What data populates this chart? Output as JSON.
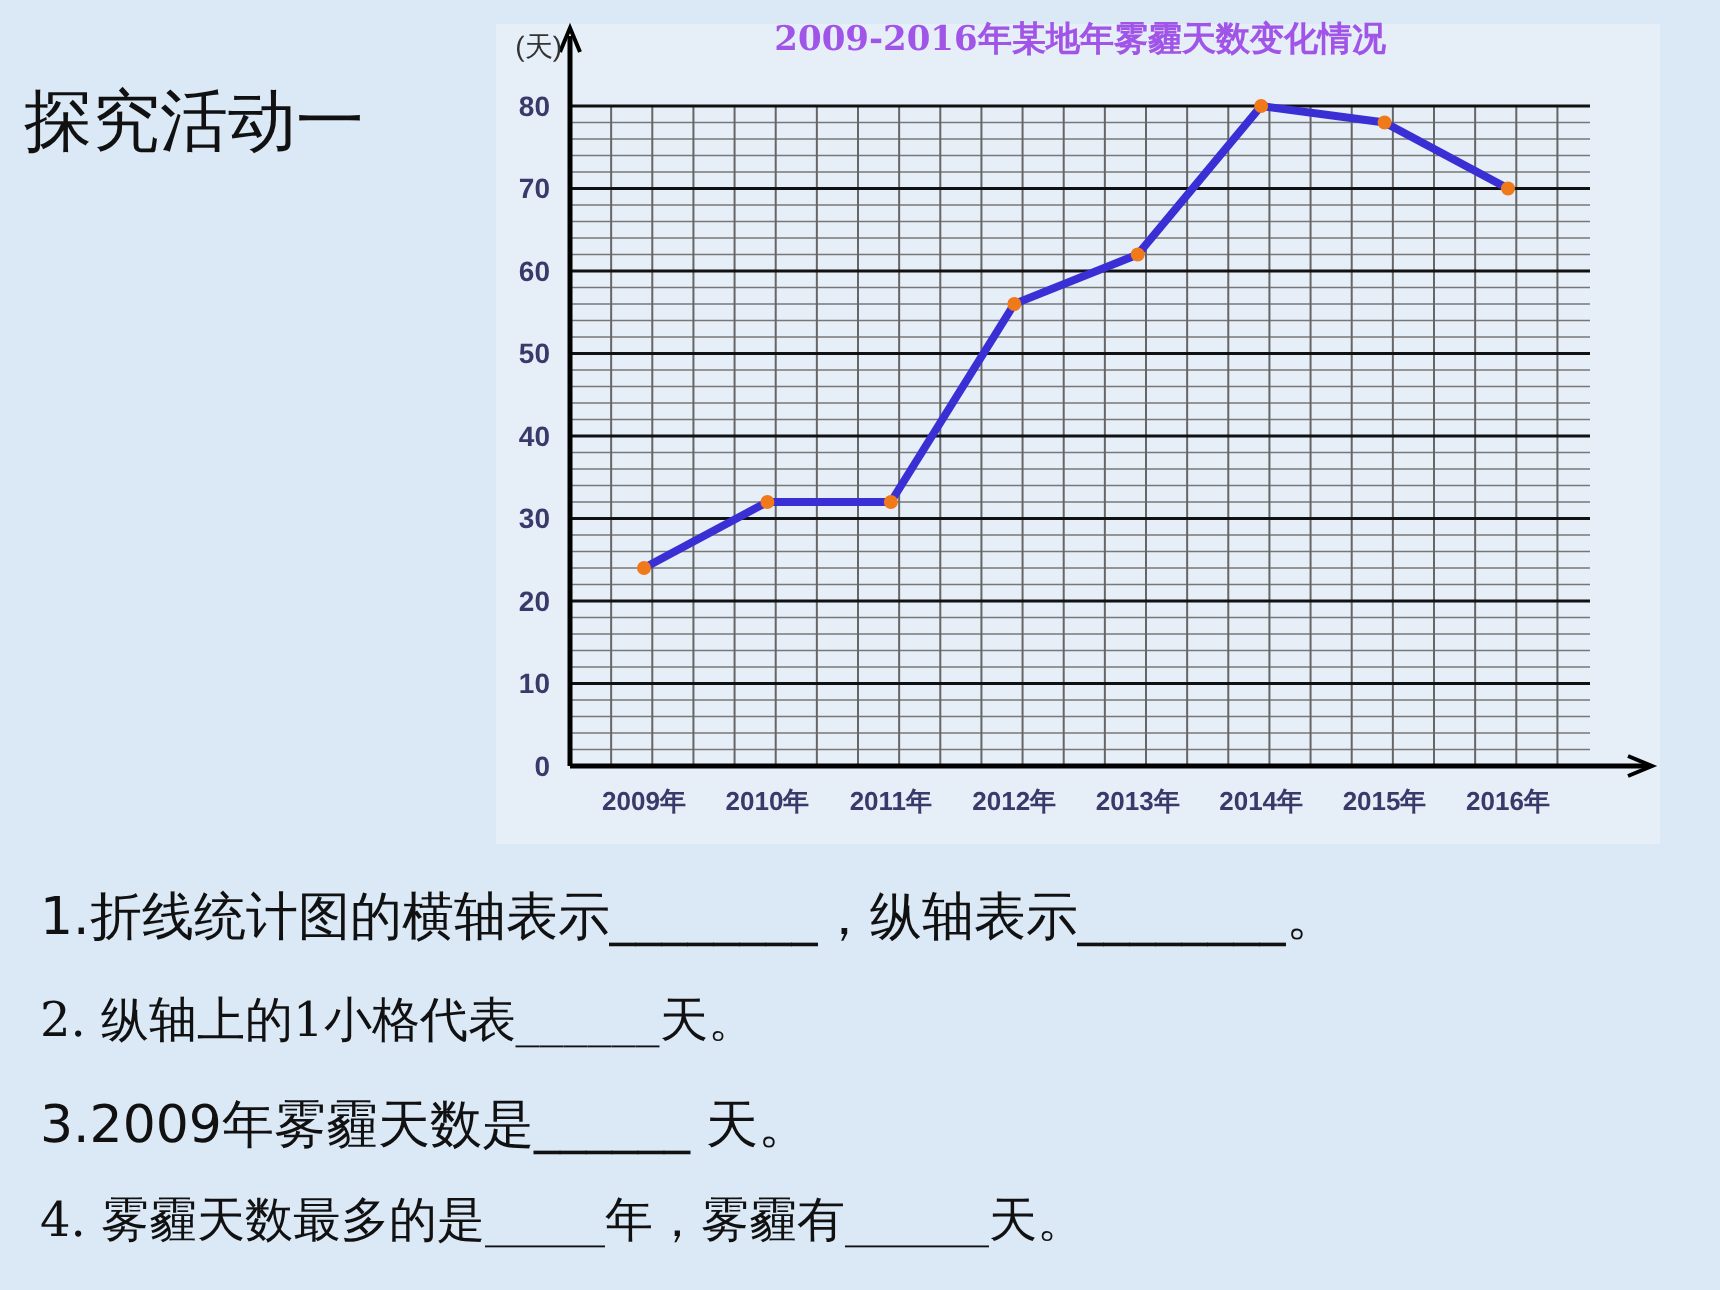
{
  "chart_data": {
    "type": "line",
    "title": "2009-2016年某地年雾霾天数变化情况",
    "ylabel": "(天)",
    "categories": [
      "2009年",
      "2010年",
      "2011年",
      "2012年",
      "2013年",
      "2014年",
      "2015年",
      "2016年"
    ],
    "series": [
      {
        "color": "#3a2fd4",
        "values": [
          24,
          32,
          32,
          56,
          62,
          80,
          78,
          70
        ]
      }
    ],
    "ylim": [
      0,
      80
    ],
    "yticks": [
      0,
      10,
      20,
      30,
      40,
      50,
      60,
      70,
      80
    ],
    "grid": true,
    "marker": "circle",
    "annotations": [
      "探究活动一",
      "1.折线统计图的横轴表示________，纵轴表示________。",
      "2. 纵轴上的1小格代表______天。",
      "3.2009年雾霾天数是______ 天。",
      "4. 雾霾天数最多的是_____年，雾霾有______天。"
    ]
  }
}
